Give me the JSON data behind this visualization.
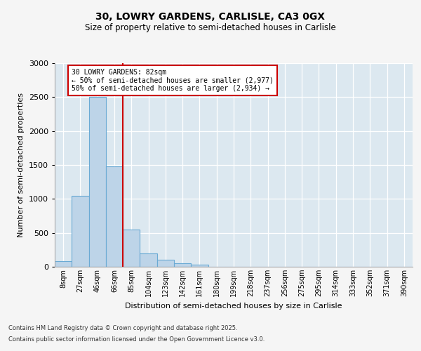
{
  "title_line1": "30, LOWRY GARDENS, CARLISLE, CA3 0GX",
  "title_line2": "Size of property relative to semi-detached houses in Carlisle",
  "xlabel": "Distribution of semi-detached houses by size in Carlisle",
  "ylabel": "Number of semi-detached properties",
  "categories": [
    "8sqm",
    "27sqm",
    "46sqm",
    "66sqm",
    "85sqm",
    "104sqm",
    "123sqm",
    "142sqm",
    "161sqm",
    "180sqm",
    "199sqm",
    "218sqm",
    "237sqm",
    "256sqm",
    "275sqm",
    "295sqm",
    "314sqm",
    "333sqm",
    "352sqm",
    "371sqm",
    "390sqm"
  ],
  "values": [
    80,
    1050,
    2500,
    1480,
    550,
    200,
    100,
    50,
    30,
    0,
    0,
    0,
    0,
    0,
    0,
    0,
    0,
    0,
    0,
    0,
    0
  ],
  "bar_color": "#bdd4e8",
  "bar_edge_color": "#6aaad4",
  "vline_x_index": 3.5,
  "annotation_text": "30 LOWRY GARDENS: 82sqm\n← 50% of semi-detached houses are smaller (2,977)\n50% of semi-detached houses are larger (2,934) →",
  "annotation_box_color": "#ffffff",
  "annotation_box_edge_color": "#cc0000",
  "vline_color": "#cc0000",
  "ylim": [
    0,
    3000
  ],
  "yticks": [
    0,
    500,
    1000,
    1500,
    2000,
    2500,
    3000
  ],
  "plot_bg_color": "#dce8f0",
  "grid_color": "#ffffff",
  "fig_bg_color": "#f5f5f5",
  "footer_line1": "Contains HM Land Registry data © Crown copyright and database right 2025.",
  "footer_line2": "Contains public sector information licensed under the Open Government Licence v3.0."
}
